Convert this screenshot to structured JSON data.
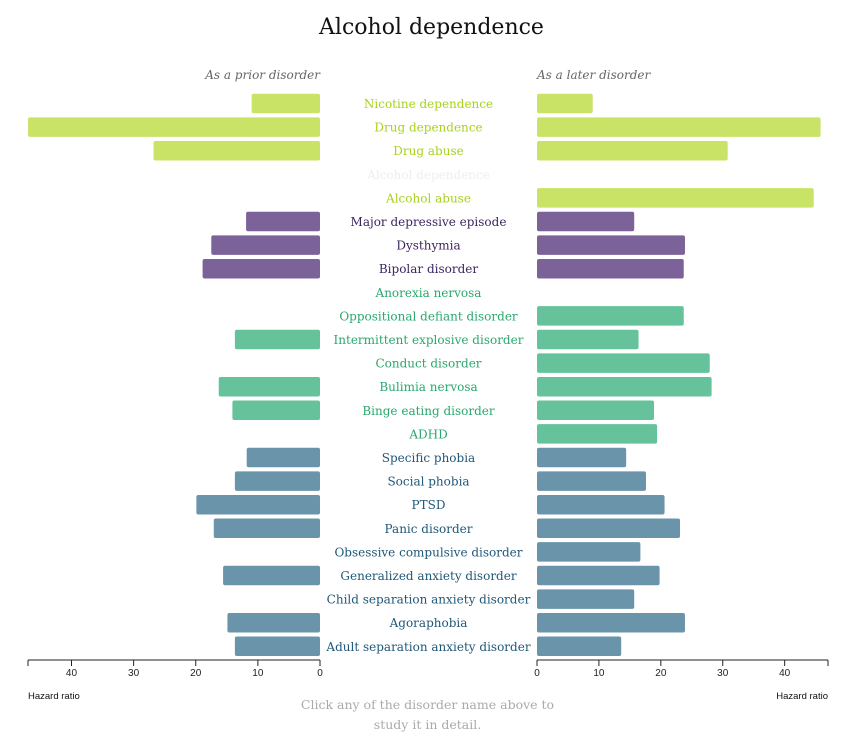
{
  "title": "Alcohol dependence",
  "footer": "Click any of the disorder name above to study it in detail.",
  "colors": {
    "substance": "#c8e366",
    "substance_text": "#a8d21c",
    "mood": "#7b6399",
    "mood_text": "#3d2560",
    "externalizing": "#66c29a",
    "externalizing_text": "#2aa86d",
    "anxiety": "#6a94aa",
    "anxiety_text": "#1f5777",
    "disabled_text": "#eeeeee",
    "axis": "#222222",
    "tick_text": "#222222"
  },
  "chart_data": {
    "type": "bar",
    "title": "Alcohol dependence",
    "left_subtitle": "As a prior disorder",
    "right_subtitle": "As a later disorder",
    "xlabel": "Hazard ratio",
    "left_xlim": [
      0,
      47
    ],
    "right_xlim": [
      0,
      47
    ],
    "left_ticks": [
      40,
      30,
      20,
      10,
      0
    ],
    "right_ticks": [
      0,
      10,
      20,
      30,
      40
    ],
    "grid": false,
    "categories": [
      {
        "name": "Nicotine dependence",
        "group": "substance",
        "prior": 11,
        "later": 9
      },
      {
        "name": "Drug dependence",
        "group": "substance",
        "prior": 47,
        "later": 45.8
      },
      {
        "name": "Drug abuse",
        "group": "substance",
        "prior": 26.8,
        "later": 30.8
      },
      {
        "name": "Alcohol dependence",
        "group": "disabled",
        "prior": null,
        "later": null
      },
      {
        "name": "Alcohol abuse",
        "group": "substance",
        "prior": null,
        "later": 44.7
      },
      {
        "name": "Major depressive episode",
        "group": "mood",
        "prior": 11.9,
        "later": 15.7
      },
      {
        "name": "Dysthymia",
        "group": "mood",
        "prior": 17.5,
        "later": 23.9
      },
      {
        "name": "Bipolar disorder",
        "group": "mood",
        "prior": 18.9,
        "later": 23.7
      },
      {
        "name": "Anorexia nervosa",
        "group": "externalizing",
        "prior": null,
        "later": null
      },
      {
        "name": "Oppositional defiant disorder",
        "group": "externalizing",
        "prior": null,
        "later": 23.7
      },
      {
        "name": "Intermittent explosive disorder",
        "group": "externalizing",
        "prior": 13.7,
        "later": 16.4
      },
      {
        "name": "Conduct disorder",
        "group": "externalizing",
        "prior": null,
        "later": 27.9
      },
      {
        "name": "Bulimia nervosa",
        "group": "externalizing",
        "prior": 16.3,
        "later": 28.2
      },
      {
        "name": "Binge eating disorder",
        "group": "externalizing",
        "prior": 14.1,
        "later": 18.9
      },
      {
        "name": "ADHD",
        "group": "externalizing",
        "prior": null,
        "later": 19.4
      },
      {
        "name": "Specific phobia",
        "group": "anxiety",
        "prior": 11.8,
        "later": 14.4
      },
      {
        "name": "Social phobia",
        "group": "anxiety",
        "prior": 13.7,
        "later": 17.6
      },
      {
        "name": "PTSD",
        "group": "anxiety",
        "prior": 19.9,
        "later": 20.6
      },
      {
        "name": "Panic disorder",
        "group": "anxiety",
        "prior": 17.1,
        "later": 23.1
      },
      {
        "name": "Obsessive compulsive disorder",
        "group": "anxiety",
        "prior": null,
        "later": 16.7
      },
      {
        "name": "Generalized anxiety disorder",
        "group": "anxiety",
        "prior": 15.6,
        "later": 19.8
      },
      {
        "name": "Child separation anxiety disorder",
        "group": "anxiety",
        "prior": null,
        "later": 15.7
      },
      {
        "name": "Agoraphobia",
        "group": "anxiety",
        "prior": 14.9,
        "later": 23.9
      },
      {
        "name": "Adult separation anxiety disorder",
        "group": "anxiety",
        "prior": 13.7,
        "later": 13.6
      }
    ]
  }
}
